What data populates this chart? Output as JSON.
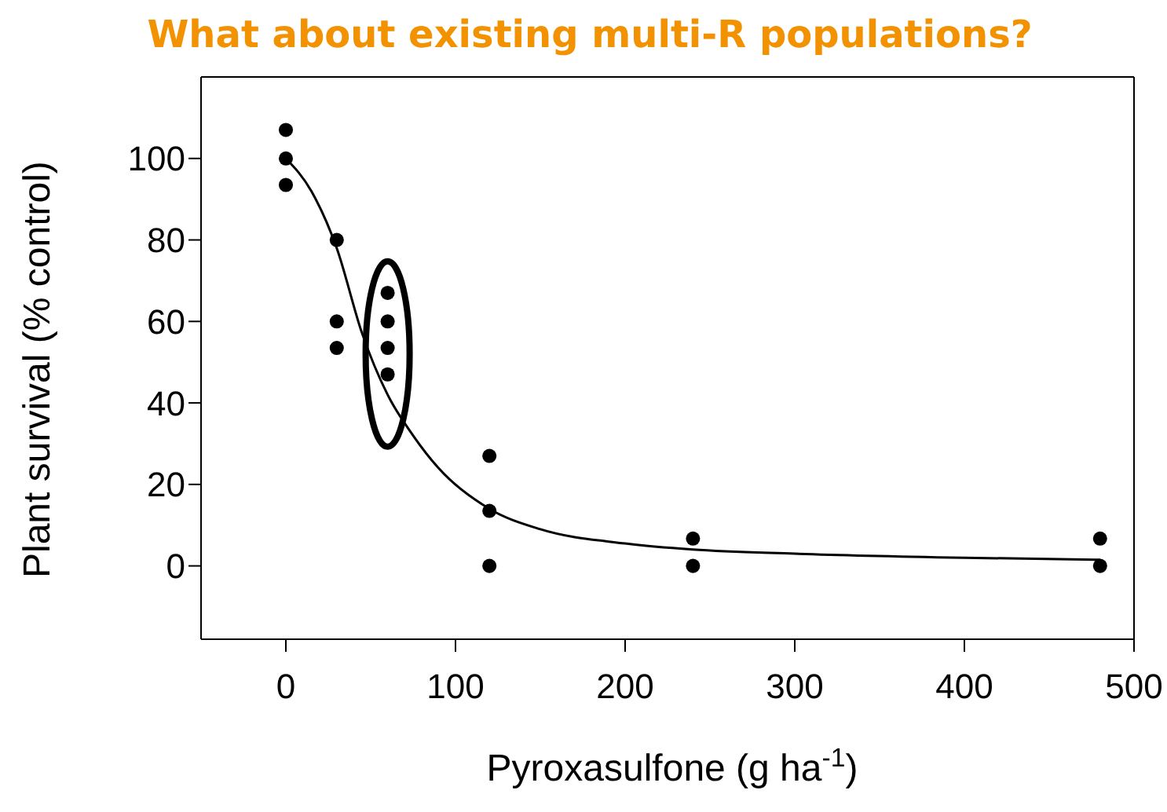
{
  "chart_data": {
    "type": "scatter",
    "title": "What about existing multi-R populations?",
    "xlabel": "Pyroxasulfone (g ha$^{-1}$)",
    "ylabel": "Plant survival (% control)",
    "xlim": [
      -50,
      500
    ],
    "xticks": [
      0,
      100,
      200,
      300,
      400,
      500
    ],
    "ylim": [
      -18,
      120
    ],
    "yticks": [
      0,
      20,
      40,
      60,
      80,
      100
    ],
    "series": [
      {
        "marker": "circle",
        "color": "#000000",
        "x": [
          0,
          0,
          0,
          30,
          30,
          30,
          60,
          60,
          60,
          60,
          120,
          120,
          120,
          240,
          240,
          480,
          480
        ],
        "values": [
          107,
          100,
          93.5,
          80,
          60,
          53.5,
          67,
          60,
          53.5,
          47,
          27,
          13.5,
          0,
          6.7,
          0,
          6.7,
          0
        ]
      },
      {
        "type": "line",
        "marker": "none",
        "color": "#000000",
        "line_style": "solid",
        "x": [
          0,
          15,
          30,
          45,
          60,
          75,
          90,
          120,
          150,
          200,
          240,
          300,
          400,
          480
        ],
        "values": [
          100,
          92,
          78,
          57,
          42,
          32,
          24,
          14,
          9,
          5.5,
          4,
          3,
          2,
          1.5
        ]
      }
    ]
  }
}
